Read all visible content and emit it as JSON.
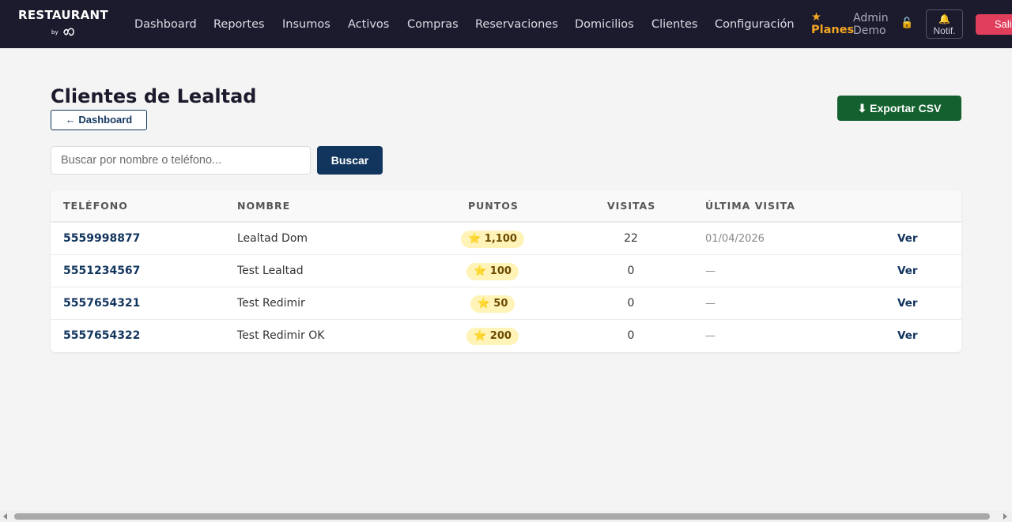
{
  "brand": {
    "name": "RESTAURANT",
    "by": "by"
  },
  "nav": {
    "items": [
      "Dashboard",
      "Reportes",
      "Insumos",
      "Activos",
      "Compras",
      "Reservaciones",
      "Domicilios",
      "Clientes",
      "Configuración"
    ],
    "planes_star": "★",
    "planes_label": "Planes",
    "user_line1": "Admin",
    "user_line2": "Demo",
    "lock_glyph": "🔓",
    "notif_glyph": "🔔",
    "notif_label": "Notif.",
    "logout_label": "Salir"
  },
  "page": {
    "title": "Clientes de Lealtad",
    "back_label": "← Dashboard",
    "export_label": "⬇ Exportar CSV"
  },
  "search": {
    "placeholder": "Buscar por nombre o teléfono...",
    "value": "",
    "button_label": "Buscar"
  },
  "table": {
    "headers": [
      "TELÉFONO",
      "NOMBRE",
      "PUNTOS",
      "VISITAS",
      "ÚLTIMA VISITA"
    ],
    "action_label": "Ver",
    "rows": [
      {
        "phone": "5559998877",
        "name": "Lealtad Dom",
        "points": "⭐ 1,100",
        "visits": "22",
        "last_visit": "01/04/2026"
      },
      {
        "phone": "5551234567",
        "name": "Test Lealtad",
        "points": "⭐ 100",
        "visits": "0",
        "last_visit": "—"
      },
      {
        "phone": "5557654321",
        "name": "Test Redimir",
        "points": "⭐ 50",
        "visits": "0",
        "last_visit": "—"
      },
      {
        "phone": "5557654322",
        "name": "Test Redimir OK",
        "points": "⭐ 200",
        "visits": "0",
        "last_visit": "—"
      }
    ]
  },
  "colors": {
    "topbar": "#1b1b2d",
    "primary": "#12355e",
    "export": "#14612f",
    "logout": "#e03e5a",
    "planes": "#f5a623",
    "points_badge": "#fff3b8"
  }
}
